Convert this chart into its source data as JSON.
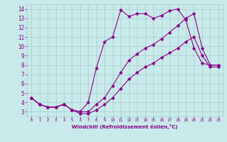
{
  "xlabel": "Windchill (Refroidissement éolien,°C)",
  "x": [
    0,
    1,
    2,
    3,
    4,
    5,
    6,
    7,
    8,
    9,
    10,
    11,
    12,
    13,
    14,
    15,
    16,
    17,
    18,
    19,
    20,
    21,
    22,
    23
  ],
  "line1": [
    4.5,
    3.8,
    3.5,
    3.5,
    3.8,
    3.2,
    3.0,
    4.0,
    7.7,
    10.5,
    11.0,
    13.9,
    13.2,
    13.5,
    13.5,
    13.0,
    13.3,
    13.8,
    14.0,
    12.8,
    9.8,
    8.2,
    8.0,
    8.0
  ],
  "line2": [
    4.5,
    3.8,
    3.5,
    3.5,
    3.8,
    3.2,
    3.0,
    3.0,
    3.8,
    4.5,
    5.8,
    7.2,
    8.5,
    9.2,
    9.8,
    10.2,
    10.8,
    11.5,
    12.2,
    13.0,
    13.5,
    9.8,
    8.0,
    8.0
  ],
  "line3": [
    4.5,
    3.8,
    3.5,
    3.5,
    3.8,
    3.2,
    2.8,
    2.8,
    3.2,
    3.8,
    4.5,
    5.5,
    6.5,
    7.2,
    7.8,
    8.2,
    8.8,
    9.3,
    9.8,
    10.5,
    11.0,
    9.0,
    7.8,
    7.8
  ],
  "line_color": "#8b008b",
  "bg_color": "#c8eaea",
  "grid_color": "#a8caca",
  "ylim": [
    2.5,
    14.5
  ],
  "yticks": [
    3,
    4,
    5,
    6,
    7,
    8,
    9,
    10,
    11,
    12,
    13,
    14
  ],
  "xticks": [
    0,
    1,
    2,
    3,
    4,
    5,
    6,
    7,
    8,
    9,
    10,
    11,
    12,
    13,
    14,
    15,
    16,
    17,
    18,
    19,
    20,
    21,
    22,
    23
  ]
}
